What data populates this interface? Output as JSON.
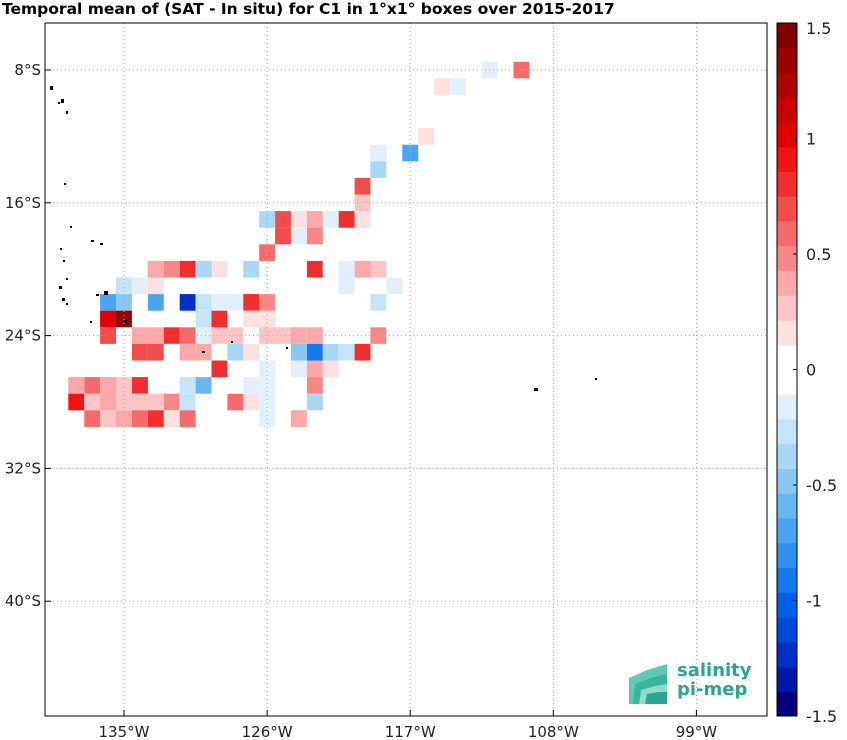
{
  "title": "Temporal mean of (SAT - In situ) for C1 in 1°x1° boxes over 2015-2017",
  "map": {
    "lon_range": [
      -140,
      -95
    ],
    "lat_range": [
      -46,
      -5
    ],
    "lon_ticks": [
      {
        "value": -135,
        "label": "135°W"
      },
      {
        "value": -126,
        "label": "126°W"
      },
      {
        "value": -117,
        "label": "117°W"
      },
      {
        "value": -108,
        "label": "108°W"
      },
      {
        "value": -99,
        "label": "99°W"
      }
    ],
    "lat_ticks": [
      {
        "value": -8,
        "label": "8°S"
      },
      {
        "value": -16,
        "label": "16°S"
      },
      {
        "value": -24,
        "label": "24°S"
      },
      {
        "value": -32,
        "label": "32°S"
      },
      {
        "value": -40,
        "label": "40°S"
      }
    ],
    "grid": true,
    "cells": [
      {
        "lon": -112,
        "lat": -8,
        "v": -0.15
      },
      {
        "lon": -110,
        "lat": -8,
        "v": 0.55
      },
      {
        "lon": -115,
        "lat": -9,
        "v": 0.2
      },
      {
        "lon": -114,
        "lat": -9,
        "v": -0.15
      },
      {
        "lon": -116,
        "lat": -12,
        "v": 0.2
      },
      {
        "lon": -119,
        "lat": -13,
        "v": -0.15
      },
      {
        "lon": -117,
        "lat": -13,
        "v": -0.75
      },
      {
        "lon": -119,
        "lat": -14,
        "v": -0.35
      },
      {
        "lon": -120,
        "lat": -15,
        "v": 0.7
      },
      {
        "lon": -119,
        "lat": -15,
        "v": -0.1
      },
      {
        "lon": -120,
        "lat": -16,
        "v": 0.3
      },
      {
        "lon": -126,
        "lat": -17,
        "v": -0.4
      },
      {
        "lon": -125,
        "lat": -17,
        "v": 0.7
      },
      {
        "lon": -124,
        "lat": -17,
        "v": 0.2
      },
      {
        "lon": -123,
        "lat": -17,
        "v": 0.35
      },
      {
        "lon": -122,
        "lat": -17,
        "v": -0.15
      },
      {
        "lon": -121,
        "lat": -17,
        "v": 0.85
      },
      {
        "lon": -120,
        "lat": -17,
        "v": 0.2
      },
      {
        "lon": -125,
        "lat": -18,
        "v": 0.7
      },
      {
        "lon": -124,
        "lat": -18,
        "v": -0.15
      },
      {
        "lon": -123,
        "lat": -18,
        "v": 0.45
      },
      {
        "lon": -128,
        "lat": -19,
        "v": -0.1
      },
      {
        "lon": -127,
        "lat": -19,
        "v": -0.1
      },
      {
        "lon": -126,
        "lat": -19,
        "v": 0.6
      },
      {
        "lon": -124,
        "lat": -19,
        "v": -0.1
      },
      {
        "lon": -123,
        "lat": -19,
        "v": 0.1
      },
      {
        "lon": -133,
        "lat": -20,
        "v": 0.35
      },
      {
        "lon": -132,
        "lat": -20,
        "v": 0.5
      },
      {
        "lon": -131,
        "lat": -20,
        "v": 0.75
      },
      {
        "lon": -130,
        "lat": -20,
        "v": -0.35
      },
      {
        "lon": -129,
        "lat": -20,
        "v": 0.15
      },
      {
        "lon": -127,
        "lat": -20,
        "v": -0.35
      },
      {
        "lon": -124,
        "lat": -20,
        "v": -0.1
      },
      {
        "lon": -123,
        "lat": -20,
        "v": 0.8
      },
      {
        "lon": -122,
        "lat": -20,
        "v": 0.1
      },
      {
        "lon": -121,
        "lat": -20,
        "v": -0.15
      },
      {
        "lon": -120,
        "lat": -20,
        "v": 0.35
      },
      {
        "lon": -119,
        "lat": -20,
        "v": 0.3
      },
      {
        "lon": -135,
        "lat": -21,
        "v": -0.3
      },
      {
        "lon": -134,
        "lat": -21,
        "v": -0.2
      },
      {
        "lon": -133,
        "lat": -21,
        "v": 0.15
      },
      {
        "lon": -121,
        "lat": -21,
        "v": -0.15
      },
      {
        "lon": -118,
        "lat": -21,
        "v": -0.15
      },
      {
        "lon": -136,
        "lat": -22,
        "v": -0.7
      },
      {
        "lon": -135,
        "lat": -22,
        "v": -0.5
      },
      {
        "lon": -133,
        "lat": -22,
        "v": -0.7
      },
      {
        "lon": -131,
        "lat": -22,
        "v": -1.2
      },
      {
        "lon": -130,
        "lat": -22,
        "v": -0.3
      },
      {
        "lon": -129,
        "lat": -22,
        "v": -0.2
      },
      {
        "lon": -128,
        "lat": -22,
        "v": -0.2
      },
      {
        "lon": -127,
        "lat": -22,
        "v": 0.75
      },
      {
        "lon": -126,
        "lat": -22,
        "v": 0.5
      },
      {
        "lon": -119,
        "lat": -22,
        "v": -0.3
      },
      {
        "lon": -136,
        "lat": -23,
        "v": 1.0
      },
      {
        "lon": -135,
        "lat": -23,
        "v": 1.35
      },
      {
        "lon": -130,
        "lat": -23,
        "v": -0.3
      },
      {
        "lon": -129,
        "lat": -23,
        "v": 0.75
      },
      {
        "lon": -127,
        "lat": -23,
        "v": 0.15
      },
      {
        "lon": -126,
        "lat": -23,
        "v": 0.2
      },
      {
        "lon": -136,
        "lat": -24,
        "v": 0.7
      },
      {
        "lon": -135,
        "lat": -24,
        "v": 0.1
      },
      {
        "lon": -134,
        "lat": -24,
        "v": 0.35
      },
      {
        "lon": -133,
        "lat": -24,
        "v": 0.35
      },
      {
        "lon": -132,
        "lat": -24,
        "v": 0.75
      },
      {
        "lon": -131,
        "lat": -24,
        "v": 0.6
      },
      {
        "lon": -130,
        "lat": -24,
        "v": -0.2
      },
      {
        "lon": -129,
        "lat": -24,
        "v": 0.3
      },
      {
        "lon": -128,
        "lat": -24,
        "v": 0.3
      },
      {
        "lon": -127,
        "lat": -24,
        "v": -0.1
      },
      {
        "lon": -126,
        "lat": -24,
        "v": 0.25
      },
      {
        "lon": -125,
        "lat": -24,
        "v": 0.3
      },
      {
        "lon": -124,
        "lat": -24,
        "v": 0.35
      },
      {
        "lon": -123,
        "lat": -24,
        "v": 0.4
      },
      {
        "lon": -119,
        "lat": -24,
        "v": 0.5
      },
      {
        "lon": -134,
        "lat": -25,
        "v": 0.7
      },
      {
        "lon": -133,
        "lat": -25,
        "v": 0.7
      },
      {
        "lon": -132,
        "lat": -25,
        "v": -0.1
      },
      {
        "lon": -131,
        "lat": -25,
        "v": 0.35
      },
      {
        "lon": -130,
        "lat": -25,
        "v": 0.4
      },
      {
        "lon": -129,
        "lat": -25,
        "v": 0.1
      },
      {
        "lon": -128,
        "lat": -25,
        "v": -0.35
      },
      {
        "lon": -127,
        "lat": -25,
        "v": 0.2
      },
      {
        "lon": -126,
        "lat": -25,
        "v": -0.1
      },
      {
        "lon": -125,
        "lat": -25,
        "v": 0.1
      },
      {
        "lon": -124,
        "lat": -25,
        "v": -0.5
      },
      {
        "lon": -123,
        "lat": -25,
        "v": -0.9
      },
      {
        "lon": -122,
        "lat": -25,
        "v": -0.4
      },
      {
        "lon": -121,
        "lat": -25,
        "v": -0.3
      },
      {
        "lon": -120,
        "lat": -25,
        "v": 0.75
      },
      {
        "lon": -129,
        "lat": -26,
        "v": 0.85
      },
      {
        "lon": -128,
        "lat": -26,
        "v": 0.1
      },
      {
        "lon": -127,
        "lat": -26,
        "v": -0.1
      },
      {
        "lon": -126,
        "lat": -26,
        "v": -0.15
      },
      {
        "lon": -125,
        "lat": -26,
        "v": 0.1
      },
      {
        "lon": -124,
        "lat": -26,
        "v": -0.2
      },
      {
        "lon": -123,
        "lat": -26,
        "v": 0.35
      },
      {
        "lon": -122,
        "lat": -26,
        "v": 0.15
      },
      {
        "lon": -138,
        "lat": -27,
        "v": 0.4
      },
      {
        "lon": -137,
        "lat": -27,
        "v": 0.55
      },
      {
        "lon": -136,
        "lat": -27,
        "v": 0.4
      },
      {
        "lon": -135,
        "lat": -27,
        "v": 0.3
      },
      {
        "lon": -134,
        "lat": -27,
        "v": 0.85
      },
      {
        "lon": -131,
        "lat": -27,
        "v": -0.3
      },
      {
        "lon": -130,
        "lat": -27,
        "v": -0.6
      },
      {
        "lon": -128,
        "lat": -27,
        "v": -0.1
      },
      {
        "lon": -127,
        "lat": -27,
        "v": -0.15
      },
      {
        "lon": -126,
        "lat": -27,
        "v": -0.2
      },
      {
        "lon": -123,
        "lat": -27,
        "v": 0.5
      },
      {
        "lon": -138,
        "lat": -28,
        "v": 0.9
      },
      {
        "lon": -137,
        "lat": -28,
        "v": 0.3
      },
      {
        "lon": -136,
        "lat": -28,
        "v": 0.35
      },
      {
        "lon": -135,
        "lat": -28,
        "v": 0.3
      },
      {
        "lon": -134,
        "lat": -28,
        "v": 0.25
      },
      {
        "lon": -133,
        "lat": -28,
        "v": 0.3
      },
      {
        "lon": -132,
        "lat": -28,
        "v": 0.45
      },
      {
        "lon": -131,
        "lat": -28,
        "v": -0.3
      },
      {
        "lon": -128,
        "lat": -28,
        "v": 0.55
      },
      {
        "lon": -127,
        "lat": -28,
        "v": 0.2
      },
      {
        "lon": -126,
        "lat": -28,
        "v": -0.2
      },
      {
        "lon": -124,
        "lat": -28,
        "v": 0.1
      },
      {
        "lon": -123,
        "lat": -28,
        "v": -0.4
      },
      {
        "lon": -137,
        "lat": -29,
        "v": 0.55
      },
      {
        "lon": -136,
        "lat": -29,
        "v": 0.3
      },
      {
        "lon": -135,
        "lat": -29,
        "v": 0.35
      },
      {
        "lon": -134,
        "lat": -29,
        "v": 0.6
      },
      {
        "lon": -133,
        "lat": -29,
        "v": 0.75
      },
      {
        "lon": -132,
        "lat": -29,
        "v": 0.2
      },
      {
        "lon": -131,
        "lat": -29,
        "v": 0.6
      },
      {
        "lon": -126,
        "lat": -29,
        "v": -0.2
      },
      {
        "lon": -124,
        "lat": -29,
        "v": 0.4
      }
    ]
  },
  "colorbar": {
    "min": -1.5,
    "max": 1.5,
    "labels": [
      "1.5",
      "1",
      "0.5",
      "0",
      "-0.5",
      "-1",
      "-1.5"
    ],
    "label_values": [
      1.5,
      1,
      0.5,
      0,
      -0.5,
      -1,
      -1.5
    ],
    "colors_bottom_to_top": [
      "#00007f",
      "#0018a8",
      "#0030c8",
      "#0048dc",
      "#0060ea",
      "#1478f0",
      "#3090f0",
      "#4ca4f0",
      "#6ab6f2",
      "#8ac8f4",
      "#a8d8f6",
      "#c6e4f8",
      "#e2f0fb",
      "#ffffff",
      "#ffffff",
      "#fde0e0",
      "#fcc4c4",
      "#fba8a8",
      "#f88888",
      "#f56a6a",
      "#f24c4c",
      "#f02e2e",
      "#f01414",
      "#e00000",
      "#c80000",
      "#b00000",
      "#980000",
      "#800000"
    ]
  },
  "logo": {
    "line1": "salinity",
    "line2": "pi-mep"
  }
}
